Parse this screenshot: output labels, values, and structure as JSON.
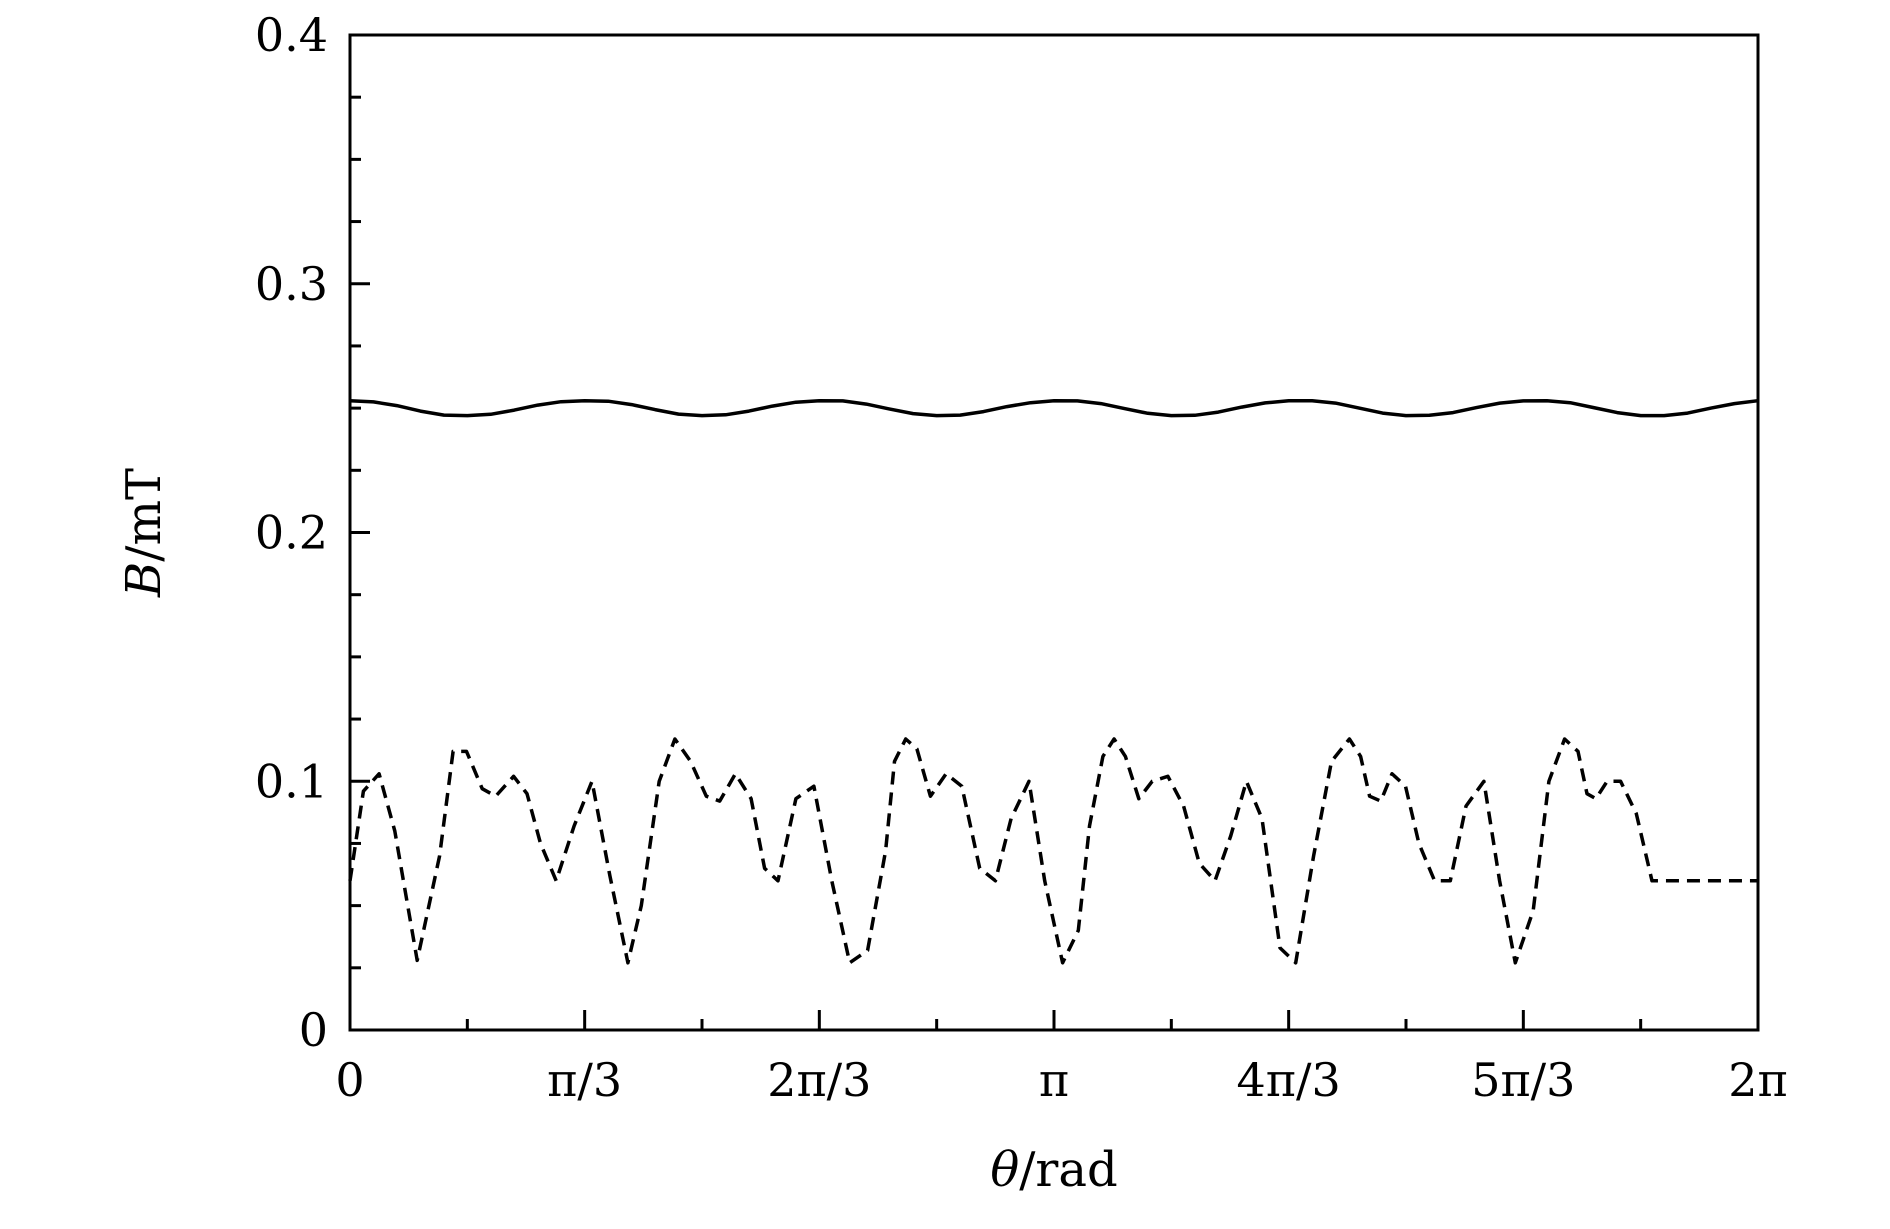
{
  "chart_data": {
    "type": "line",
    "title": "",
    "xlabel": {
      "symbol": "θ",
      "unit": "/rad"
    },
    "ylabel": {
      "symbol": "B",
      "unit": "/mT"
    },
    "xlim": [
      0,
      6.283185
    ],
    "ylim": [
      0,
      0.4
    ],
    "x_ticks": [
      {
        "value": 0,
        "label": "0"
      },
      {
        "value": 1.047198,
        "label": "π/3"
      },
      {
        "value": 2.094395,
        "label": "2π/3"
      },
      {
        "value": 3.141593,
        "label": "π"
      },
      {
        "value": 4.18879,
        "label": "4π/3"
      },
      {
        "value": 5.235988,
        "label": "5π/3"
      },
      {
        "value": 6.283185,
        "label": "2π"
      }
    ],
    "x_minor_ticks": [
      0.523599,
      1.570796,
      2.617994,
      3.665191,
      4.712389,
      5.759587
    ],
    "y_ticks": [
      {
        "value": 0,
        "label": "0"
      },
      {
        "value": 0.1,
        "label": "0.1"
      },
      {
        "value": 0.2,
        "label": "0.2"
      },
      {
        "value": 0.3,
        "label": "0.3"
      },
      {
        "value": 0.4,
        "label": "0.4"
      }
    ],
    "y_minor_ticks": [
      0.025,
      0.05,
      0.075,
      0.125,
      0.15,
      0.175,
      0.225,
      0.25,
      0.275,
      0.325,
      0.35,
      0.375
    ],
    "grid": false,
    "legend": "none",
    "series": [
      {
        "style": "solid",
        "color": "#000000",
        "x": [
          0,
          0.105,
          0.209,
          0.314,
          0.419,
          0.524,
          0.628,
          0.733,
          0.838,
          0.942,
          1.047,
          1.152,
          1.257,
          1.361,
          1.466,
          1.571,
          1.676,
          1.78,
          1.885,
          1.99,
          2.094,
          2.199,
          2.304,
          2.409,
          2.513,
          2.618,
          2.723,
          2.827,
          2.932,
          3.037,
          3.142,
          3.246,
          3.351,
          3.456,
          3.56,
          3.665,
          3.77,
          3.875,
          3.979,
          4.084,
          4.189,
          4.294,
          4.398,
          4.503,
          4.608,
          4.712,
          4.817,
          4.922,
          5.027,
          5.131,
          5.236,
          5.341,
          5.445,
          5.55,
          5.655,
          5.76,
          5.864,
          5.969,
          6.074,
          6.178,
          6.283
        ],
        "y": [
          0.253,
          0.2525,
          0.251,
          0.2488,
          0.2472,
          0.247,
          0.2475,
          0.2492,
          0.2512,
          0.2526,
          0.253,
          0.2528,
          0.2514,
          0.2494,
          0.2476,
          0.247,
          0.2473,
          0.2488,
          0.2508,
          0.2524,
          0.253,
          0.2529,
          0.2516,
          0.2496,
          0.2478,
          0.247,
          0.2472,
          0.2486,
          0.2506,
          0.2522,
          0.253,
          0.2529,
          0.2518,
          0.2498,
          0.2479,
          0.247,
          0.2471,
          0.2484,
          0.2504,
          0.2521,
          0.253,
          0.253,
          0.252,
          0.25,
          0.248,
          0.247,
          0.2471,
          0.2482,
          0.2502,
          0.252,
          0.2529,
          0.253,
          0.2522,
          0.2502,
          0.2482,
          0.247,
          0.247,
          0.248,
          0.25,
          0.2518,
          0.253
        ]
      },
      {
        "style": "dashed",
        "color": "#000000",
        "x": [
          0,
          0.06,
          0.13,
          0.2,
          0.3,
          0.4,
          0.46,
          0.52,
          0.59,
          0.65,
          0.73,
          0.79,
          0.85,
          0.92,
          1.0,
          1.08,
          1.16,
          1.24,
          1.3,
          1.38,
          1.45,
          1.52,
          1.59,
          1.65,
          1.72,
          1.79,
          1.85,
          1.91,
          1.99,
          2.07,
          2.15,
          2.23,
          2.31,
          2.39,
          2.43,
          2.48,
          2.53,
          2.59,
          2.66,
          2.73,
          2.81,
          2.88,
          2.95,
          3.03,
          3.1,
          3.18,
          3.25,
          3.3,
          3.36,
          3.41,
          3.46,
          3.52,
          3.58,
          3.65,
          3.72,
          3.79,
          3.86,
          3.93,
          4.0,
          4.07,
          4.15,
          4.22,
          4.3,
          4.38,
          4.46,
          4.51,
          4.55,
          4.6,
          4.65,
          4.71,
          4.77,
          4.84,
          4.91,
          4.98,
          5.06,
          5.13,
          5.2,
          5.28,
          5.35,
          5.42,
          5.48,
          5.52,
          5.56,
          5.61,
          5.67,
          5.74,
          5.81,
          5.88,
          5.96,
          6.04,
          6.12,
          6.2,
          6.283
        ],
        "y": [
          0.06,
          0.096,
          0.103,
          0.08,
          0.028,
          0.07,
          0.112,
          0.112,
          0.097,
          0.094,
          0.102,
          0.095,
          0.075,
          0.06,
          0.082,
          0.1,
          0.062,
          0.027,
          0.05,
          0.1,
          0.117,
          0.108,
          0.094,
          0.092,
          0.103,
          0.093,
          0.065,
          0.06,
          0.093,
          0.098,
          0.06,
          0.027,
          0.032,
          0.072,
          0.108,
          0.117,
          0.113,
          0.094,
          0.103,
          0.098,
          0.065,
          0.06,
          0.085,
          0.1,
          0.06,
          0.027,
          0.04,
          0.082,
          0.11,
          0.117,
          0.11,
          0.093,
          0.1,
          0.102,
          0.09,
          0.067,
          0.06,
          0.078,
          0.1,
          0.085,
          0.033,
          0.027,
          0.07,
          0.108,
          0.117,
          0.11,
          0.094,
          0.092,
          0.103,
          0.098,
          0.075,
          0.06,
          0.06,
          0.09,
          0.1,
          0.06,
          0.027,
          0.048,
          0.1,
          0.117,
          0.112,
          0.095,
          0.093,
          0.1,
          0.1,
          0.087,
          0.06,
          0.06,
          0.06,
          0.06,
          0.06,
          0.06,
          0.06
        ]
      }
    ]
  }
}
